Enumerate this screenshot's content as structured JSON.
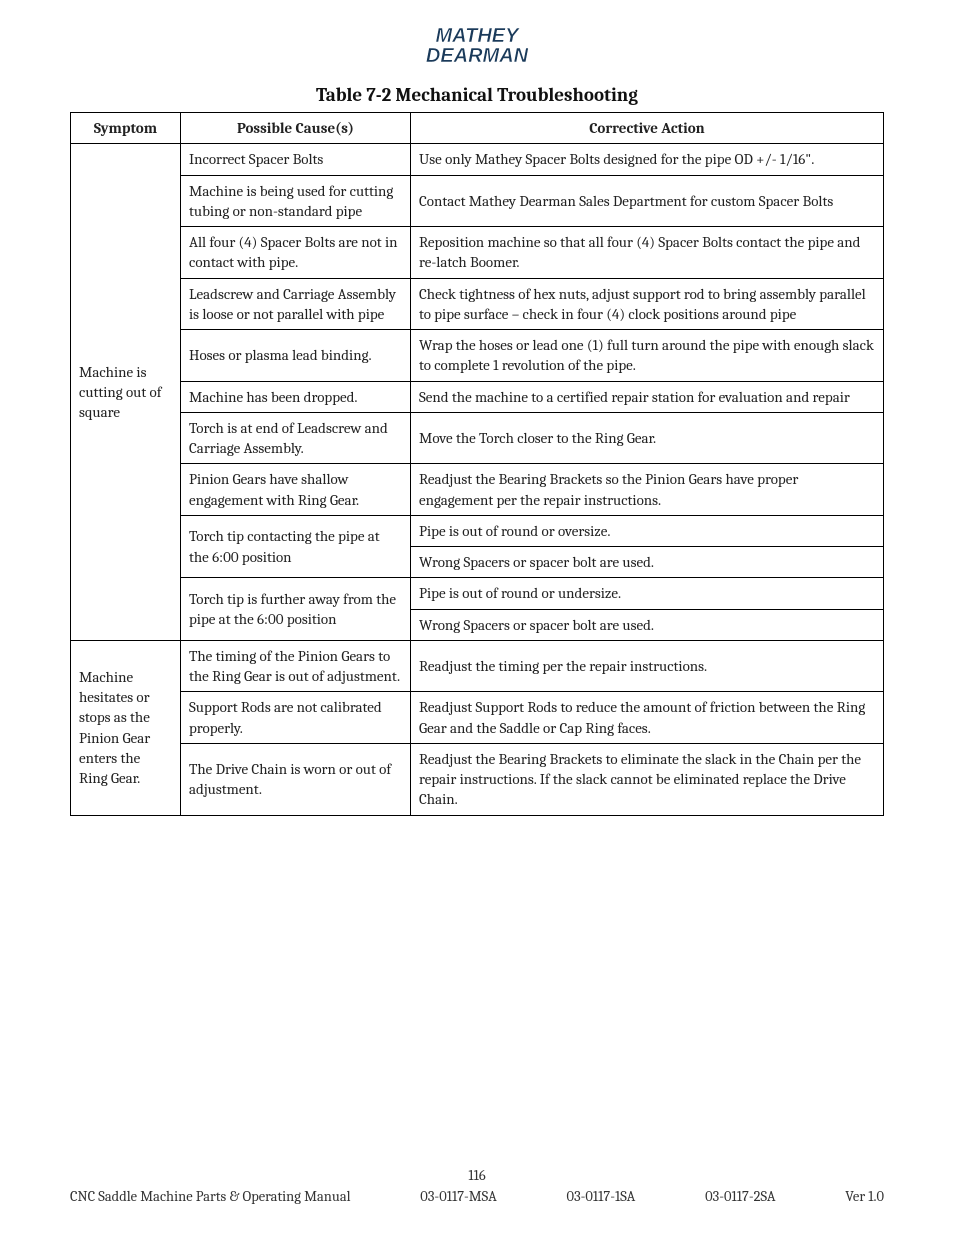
{
  "logo": {
    "line1": "MATHEY",
    "line2": "DEARMAN",
    "fill": "#1a3a5a",
    "outline": "#ffffff"
  },
  "title": "Table 7-2 Mechanical Troubleshooting",
  "headers": {
    "symptom": "Symptom",
    "cause": "Possible Cause(s)",
    "action": "Corrective Action"
  },
  "groups": [
    {
      "symptom": "Machine is cutting out of square",
      "rows": [
        {
          "cause": "Incorrect Spacer Bolts",
          "action": "Use only Mathey Spacer Bolts designed for the pipe OD +/- 1/16\"."
        },
        {
          "cause": "Machine is being used for cutting tubing or non-standard pipe",
          "action": "Contact Mathey Dearman Sales Department for custom Spacer Bolts"
        },
        {
          "cause": "All four (4) Spacer Bolts are not in contact with pipe.",
          "action": "Reposition machine so that all four (4) Spacer Bolts contact the pipe and re-latch Boomer."
        },
        {
          "cause": "Leadscrew and Carriage Assembly is loose or not parallel with pipe",
          "action": "Check tightness of hex nuts, adjust support rod to bring assembly parallel to pipe surface – check in four (4) clock positions around pipe"
        },
        {
          "cause": "Hoses or plasma lead binding.",
          "action": "Wrap the hoses or lead one (1) full turn around the pipe with enough slack to complete 1 revolution of the pipe."
        },
        {
          "cause": "Machine has been dropped.",
          "action": "Send the machine to a certified repair station for evaluation and repair"
        },
        {
          "cause": "Torch is at end of Leadscrew and Carriage Assembly.",
          "action": "Move the Torch closer to the Ring Gear."
        },
        {
          "cause": "Pinion Gears have shallow engagement with Ring Gear.",
          "action": "Readjust the Bearing Brackets so the Pinion Gears have proper engagement per the repair instructions."
        },
        {
          "cause": "Torch tip contacting the pipe at the  6:00 position",
          "cause_rowspan": 2,
          "action": "Pipe is out of round or oversize."
        },
        {
          "action": "Wrong Spacers or spacer bolt are used."
        },
        {
          "cause": "Torch tip is further away from the pipe at the 6:00 position",
          "cause_rowspan": 2,
          "action": "Pipe is out of round or undersize."
        },
        {
          "action": "Wrong Spacers or spacer bolt are used."
        }
      ]
    },
    {
      "symptom": "Machine hesitates or stops as the Pinion Gear enters the Ring Gear.",
      "rows": [
        {
          "cause": "The timing of the Pinion Gears to the Ring Gear is out of adjustment.",
          "action": "Readjust the timing per the repair instructions."
        },
        {
          "cause": "Support Rods are not calibrated properly.",
          "action": "Readjust Support Rods to reduce the amount of friction between the Ring Gear and the Saddle or Cap Ring faces."
        },
        {
          "cause": "The Drive Chain is worn or out of adjustment.",
          "action": "Readjust the Bearing Brackets to eliminate the slack in the Chain per the repair instructions. If the slack cannot be eliminated replace the Drive Chain."
        }
      ]
    }
  ],
  "footer": {
    "page": "116",
    "left": "CNC Saddle Machine Parts & Operating Manual",
    "mid1": "03-0117-MSA",
    "mid2": "03-0117-1SA",
    "mid3": "03-0117-2SA",
    "right": "Ver 1.0"
  }
}
